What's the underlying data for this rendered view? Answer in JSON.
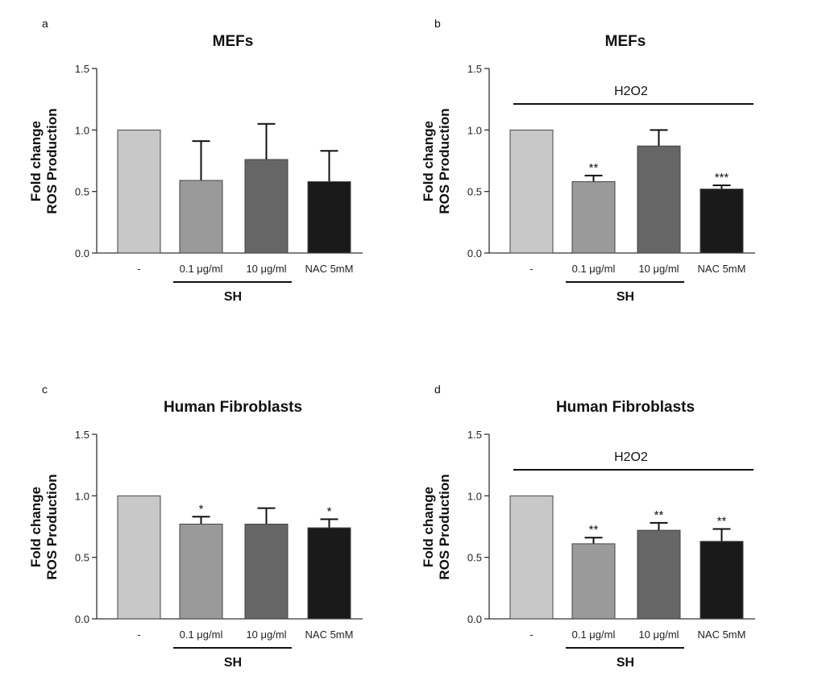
{
  "chart_data": [
    {
      "type": "bar",
      "panel": "a",
      "title": "MEFs",
      "ylabel": [
        "Fold change",
        "ROS Production"
      ],
      "ylim": [
        0,
        1.5
      ],
      "yticks": [
        "0.0",
        "0.5",
        "1.0",
        "1.5"
      ],
      "categories": [
        "-",
        "0.1 μg/ml",
        "10 μg/ml",
        "NAC 5mM"
      ],
      "values": [
        1.0,
        0.59,
        0.76,
        0.58
      ],
      "error_upper": [
        1.0,
        0.91,
        1.05,
        0.83
      ],
      "significance": [
        "",
        "",
        "",
        ""
      ],
      "colors": [
        "#c8c8c8",
        "#9a9a9a",
        "#666666",
        "#1a1a1a"
      ],
      "group_label": "SH",
      "treatment_label": ""
    },
    {
      "type": "bar",
      "panel": "b",
      "title": "MEFs",
      "ylabel": [
        "Fold change",
        "ROS Production"
      ],
      "ylim": [
        0,
        1.5
      ],
      "yticks": [
        "0.0",
        "0.5",
        "1.0",
        "1.5"
      ],
      "categories": [
        "-",
        "0.1 μg/ml",
        "10 μg/ml",
        "NAC 5mM"
      ],
      "values": [
        1.0,
        0.58,
        0.87,
        0.52
      ],
      "error_upper": [
        1.0,
        0.63,
        1.0,
        0.55
      ],
      "significance": [
        "",
        "**",
        "",
        "***"
      ],
      "colors": [
        "#c8c8c8",
        "#9a9a9a",
        "#666666",
        "#1a1a1a"
      ],
      "group_label": "SH",
      "treatment_label": "H2O2"
    },
    {
      "type": "bar",
      "panel": "c",
      "title": "Human Fibroblasts",
      "ylabel": [
        "Fold change",
        "ROS Production"
      ],
      "ylim": [
        0,
        1.5
      ],
      "yticks": [
        "0.0",
        "0.5",
        "1.0",
        "1.5"
      ],
      "categories": [
        "-",
        "0.1 μg/ml",
        "10 μg/ml",
        "NAC 5mM"
      ],
      "values": [
        1.0,
        0.77,
        0.77,
        0.74
      ],
      "error_upper": [
        1.0,
        0.83,
        0.9,
        0.81
      ],
      "significance": [
        "",
        "*",
        "",
        "*"
      ],
      "colors": [
        "#c8c8c8",
        "#9a9a9a",
        "#666666",
        "#1a1a1a"
      ],
      "group_label": "SH",
      "treatment_label": ""
    },
    {
      "type": "bar",
      "panel": "d",
      "title": "Human Fibroblasts",
      "ylabel": [
        "Fold change",
        "ROS Production"
      ],
      "ylim": [
        0,
        1.5
      ],
      "yticks": [
        "0.0",
        "0.5",
        "1.0",
        "1.5"
      ],
      "categories": [
        "-",
        "0.1 μg/ml",
        "10 μg/ml",
        "NAC 5mM"
      ],
      "values": [
        1.0,
        0.61,
        0.72,
        0.63
      ],
      "error_upper": [
        1.0,
        0.66,
        0.78,
        0.73
      ],
      "significance": [
        "",
        "**",
        "**",
        "**"
      ],
      "colors": [
        "#c8c8c8",
        "#9a9a9a",
        "#666666",
        "#1a1a1a"
      ],
      "group_label": "SH",
      "treatment_label": "H2O2"
    }
  ]
}
